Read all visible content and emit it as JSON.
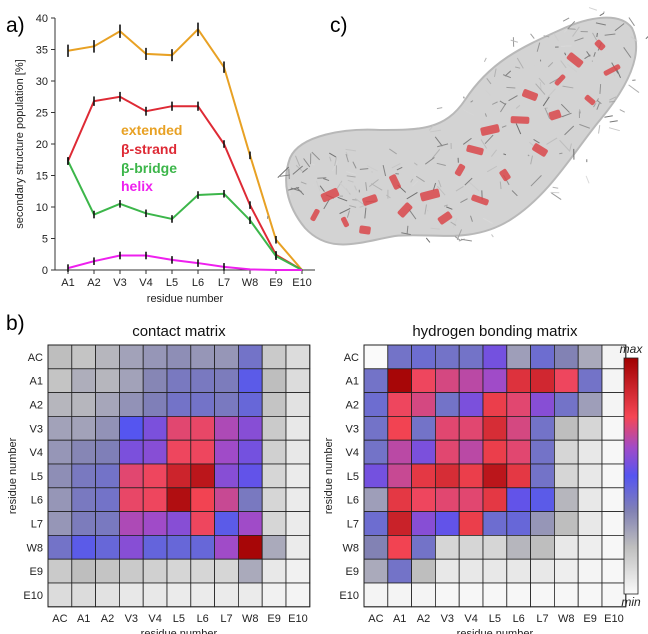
{
  "panel_labels": {
    "a": "a)",
    "b": "b)",
    "c": "c)"
  },
  "chart_data": [
    {
      "type": "line",
      "x": [
        "A1",
        "A2",
        "V3",
        "V4",
        "L5",
        "L6",
        "L7",
        "W8",
        "E9",
        "E10"
      ],
      "ylabel": "secondary structure population [%]",
      "xlabel": "residue number",
      "ylim": [
        0,
        40
      ],
      "yticks": [
        "0",
        "5",
        "10",
        "15",
        "20",
        "25",
        "30",
        "35",
        "40"
      ],
      "legend_placement": "center-left",
      "grid": false,
      "series": [
        {
          "name": "extended",
          "color": "#e8a124",
          "values": [
            34.8,
            35.5,
            37.9,
            34.3,
            34.1,
            38.2,
            32.2,
            18.2,
            4.8,
            0.0
          ]
        },
        {
          "name": "β-strand",
          "color": "#de2a35",
          "values": [
            17.3,
            26.8,
            27.5,
            25.2,
            26.0,
            26.0,
            20.0,
            10.3,
            2.4,
            0.0
          ]
        },
        {
          "name": "β-bridge",
          "color": "#3cb64a",
          "values": [
            17.3,
            8.8,
            10.5,
            9.0,
            8.1,
            11.9,
            12.1,
            7.9,
            2.2,
            0.0
          ]
        },
        {
          "name": "helix",
          "color": "#ee20ee",
          "values": [
            0.3,
            1.4,
            2.3,
            2.3,
            1.6,
            1.1,
            0.5,
            0.1,
            0.0,
            0.0
          ]
        }
      ]
    },
    {
      "type": "heatmap",
      "title": "contact matrix",
      "rows": [
        "AC",
        "A1",
        "A2",
        "V3",
        "V4",
        "L5",
        "L6",
        "L7",
        "W8",
        "E9",
        "E10"
      ],
      "cols": [
        "AC",
        "A1",
        "A2",
        "V3",
        "V4",
        "L5",
        "L6",
        "L7",
        "W8",
        "E9",
        "E10"
      ],
      "xlabel": "residue number",
      "ylabel": "residue number",
      "values": [
        [
          0.2,
          0.18,
          0.22,
          0.27,
          0.3,
          0.32,
          0.3,
          0.3,
          0.4,
          0.16,
          0.1
        ],
        [
          0.18,
          0.24,
          0.22,
          0.27,
          0.34,
          0.38,
          0.38,
          0.37,
          0.48,
          0.2,
          0.1
        ],
        [
          0.22,
          0.22,
          0.26,
          0.31,
          0.36,
          0.4,
          0.4,
          0.38,
          0.44,
          0.18,
          0.08
        ],
        [
          0.27,
          0.27,
          0.31,
          0.5,
          0.56,
          0.72,
          0.73,
          0.64,
          0.58,
          0.16,
          0.06
        ],
        [
          0.3,
          0.34,
          0.36,
          0.56,
          0.58,
          0.74,
          0.74,
          0.62,
          0.55,
          0.14,
          0.06
        ],
        [
          0.32,
          0.38,
          0.4,
          0.72,
          0.74,
          0.87,
          0.92,
          0.58,
          0.52,
          0.12,
          0.05
        ],
        [
          0.3,
          0.38,
          0.4,
          0.73,
          0.74,
          0.95,
          0.76,
          0.68,
          0.38,
          0.12,
          0.05
        ],
        [
          0.3,
          0.37,
          0.38,
          0.64,
          0.62,
          0.58,
          0.74,
          0.48,
          0.62,
          0.12,
          0.05
        ],
        [
          0.4,
          0.48,
          0.44,
          0.58,
          0.45,
          0.44,
          0.44,
          0.62,
          0.98,
          0.25,
          0.05
        ],
        [
          0.16,
          0.2,
          0.18,
          0.16,
          0.14,
          0.12,
          0.12,
          0.12,
          0.25,
          0.06,
          0.03
        ],
        [
          0.1,
          0.1,
          0.08,
          0.06,
          0.06,
          0.05,
          0.05,
          0.05,
          0.05,
          0.03,
          0.02
        ]
      ]
    },
    {
      "type": "heatmap",
      "title": "hydrogen bonding matrix",
      "rows": [
        "AC",
        "A1",
        "A2",
        "V3",
        "V4",
        "L5",
        "L6",
        "L7",
        "W8",
        "E9",
        "E10"
      ],
      "cols": [
        "AC",
        "A1",
        "A2",
        "V3",
        "V4",
        "L5",
        "L6",
        "L7",
        "W8",
        "E9",
        "E10"
      ],
      "xlabel": "residue number",
      "ylabel": "residue number",
      "colorbar": {
        "max_label": "max",
        "min_label": "min"
      },
      "values": [
        [
          0.0,
          0.4,
          0.42,
          0.4,
          0.4,
          0.55,
          0.28,
          0.42,
          0.35,
          0.25,
          0.02
        ],
        [
          0.4,
          0.98,
          0.74,
          0.7,
          0.66,
          0.62,
          0.82,
          0.86,
          0.74,
          0.4,
          0.02
        ],
        [
          0.42,
          0.74,
          0.7,
          0.4,
          0.56,
          0.78,
          0.72,
          0.58,
          0.4,
          0.28,
          0.02
        ],
        [
          0.4,
          0.76,
          0.4,
          0.72,
          0.72,
          0.84,
          0.7,
          0.4,
          0.2,
          0.12,
          0.01
        ],
        [
          0.4,
          0.66,
          0.56,
          0.72,
          0.66,
          0.78,
          0.72,
          0.4,
          0.12,
          0.06,
          0.01
        ],
        [
          0.55,
          0.68,
          0.8,
          0.84,
          0.78,
          0.92,
          0.8,
          0.4,
          0.12,
          0.06,
          0.01
        ],
        [
          0.28,
          0.8,
          0.74,
          0.72,
          0.72,
          0.8,
          0.52,
          0.48,
          0.22,
          0.06,
          0.01
        ],
        [
          0.42,
          0.88,
          0.58,
          0.52,
          0.78,
          0.42,
          0.44,
          0.3,
          0.2,
          0.06,
          0.01
        ],
        [
          0.35,
          0.76,
          0.4,
          0.12,
          0.12,
          0.12,
          0.22,
          0.2,
          0.06,
          0.04,
          0.01
        ],
        [
          0.25,
          0.4,
          0.2,
          0.06,
          0.06,
          0.06,
          0.06,
          0.06,
          0.04,
          0.02,
          0.01
        ],
        [
          0.02,
          0.02,
          0.02,
          0.01,
          0.01,
          0.01,
          0.01,
          0.01,
          0.01,
          0.01,
          0.01
        ]
      ]
    }
  ]
}
